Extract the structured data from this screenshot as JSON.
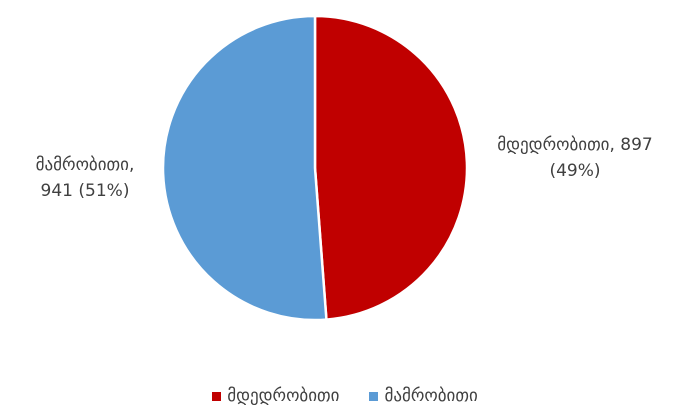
{
  "chart_data": {
    "type": "pie",
    "title": "",
    "slices": [
      {
        "name": "მდედრობითი",
        "value": 897,
        "percent": "49%",
        "color": "#C00000"
      },
      {
        "name": "მამრობითი",
        "value": 941,
        "percent": "51%",
        "color": "#5B9BD5"
      }
    ],
    "labels": {
      "female_line1": "მდედრობითი, 897",
      "female_line2": "(49%)",
      "male_line1": "მამრობითი,",
      "male_line2": "941 (51%)"
    },
    "legend": {
      "placement": "bottom",
      "items": [
        {
          "label": "მდედრობითი",
          "color": "#C00000"
        },
        {
          "label": "მამრობითი",
          "color": "#5B9BD5"
        }
      ]
    }
  }
}
